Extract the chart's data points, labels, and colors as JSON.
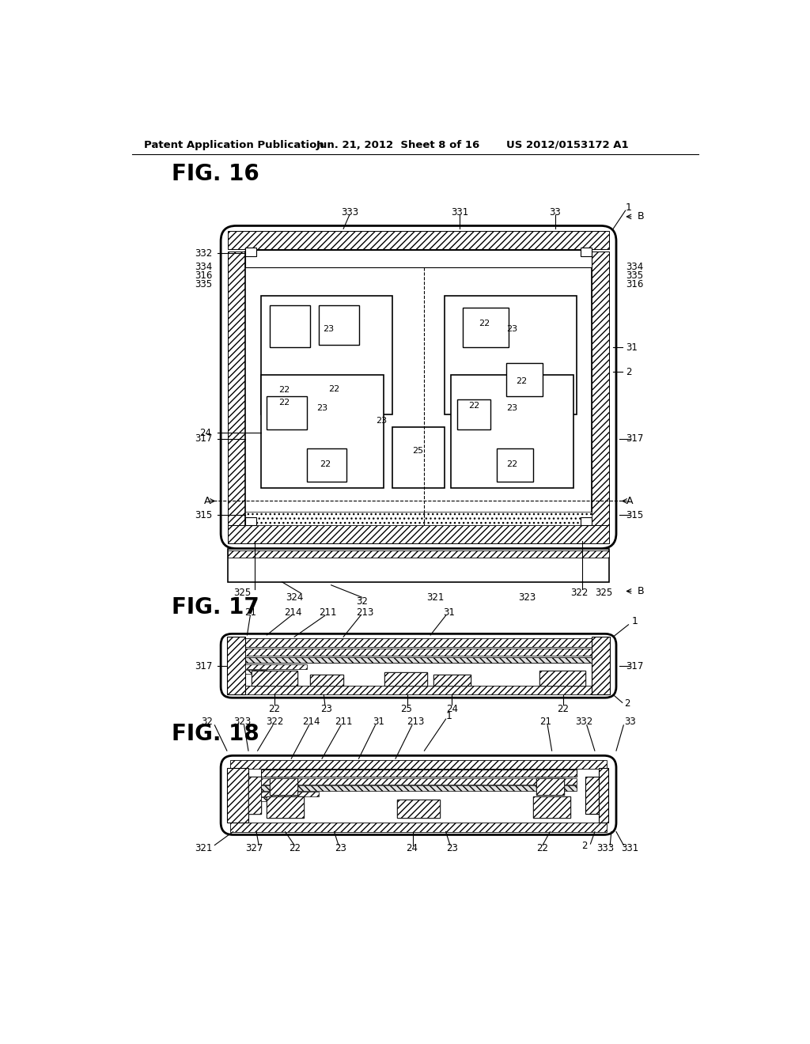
{
  "bg_color": "#ffffff",
  "header_text1": "Patent Application Publication",
  "header_text2": "Jun. 21, 2012  Sheet 8 of 16",
  "header_text3": "US 2012/0153172 A1",
  "fig16_title": "FIG. 16",
  "fig17_title": "FIG. 17",
  "fig18_title": "FIG. 18"
}
